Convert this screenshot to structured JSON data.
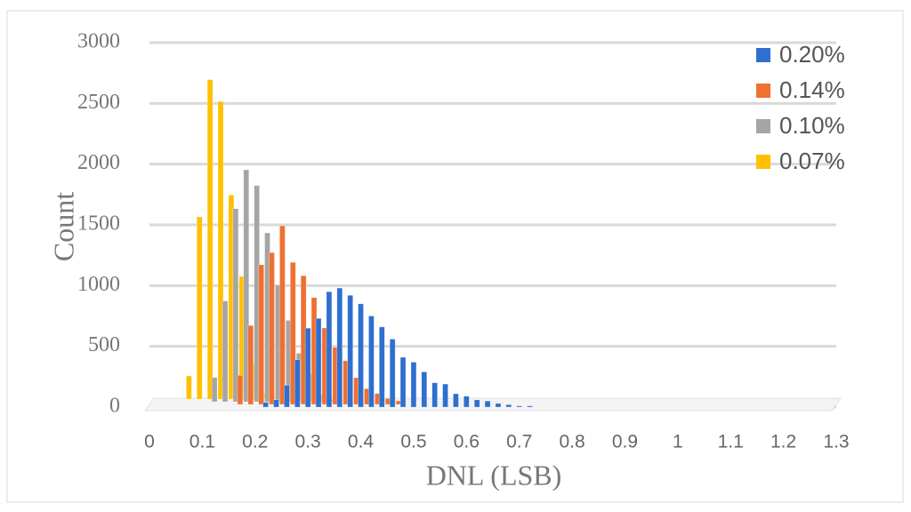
{
  "chart_data": {
    "type": "bar",
    "x_label": "DNL (LSB)",
    "y_label": "Count",
    "x": [
      0.1,
      0.12,
      0.14,
      0.16,
      0.18,
      0.2,
      0.22,
      0.24,
      0.26,
      0.28,
      0.3,
      0.32,
      0.34,
      0.36,
      0.38,
      0.4,
      0.42,
      0.44,
      0.46,
      0.48,
      0.5,
      0.52,
      0.54,
      0.56,
      0.58,
      0.6,
      0.62,
      0.64,
      0.66,
      0.68,
      0.7,
      0.72
    ],
    "series": [
      {
        "name": "0.20%",
        "color": "#2e6fcf",
        "values": [
          null,
          null,
          null,
          null,
          null,
          null,
          40,
          60,
          180,
          390,
          650,
          730,
          950,
          980,
          920,
          850,
          750,
          660,
          560,
          410,
          370,
          290,
          200,
          190,
          110,
          90,
          60,
          50,
          30,
          20,
          10,
          10
        ]
      },
      {
        "name": "0.14%",
        "color": "#f07030",
        "values": [
          null,
          null,
          null,
          null,
          240,
          650,
          1150,
          1250,
          1470,
          1170,
          1060,
          880,
          630,
          470,
          360,
          220,
          130,
          90,
          50,
          30,
          null,
          null,
          null,
          null,
          null,
          null,
          null,
          null,
          null,
          null,
          null,
          null
        ]
      },
      {
        "name": "0.10%",
        "color": "#a5a5a5",
        "values": [
          null,
          null,
          200,
          830,
          1590,
          1910,
          1780,
          1390,
          960,
          670,
          400,
          230,
          60,
          20,
          null,
          null,
          null,
          null,
          null,
          null,
          null,
          null,
          null,
          null,
          null,
          null,
          null,
          null,
          null,
          null,
          null,
          null
        ]
      },
      {
        "name": "0.07%",
        "color": "#ffc000",
        "values": [
          190,
          1500,
          2630,
          2450,
          1680,
          1010,
          300,
          50,
          null,
          null,
          null,
          null,
          null,
          null,
          null,
          null,
          null,
          null,
          null,
          null,
          null,
          null,
          null,
          null,
          null,
          null,
          null,
          null,
          null,
          null,
          null,
          null
        ]
      }
    ],
    "xlim": [
      0,
      1.3
    ],
    "xticks": [
      0,
      0.1,
      0.2,
      0.3,
      0.4,
      0.5,
      0.6,
      0.7,
      0.8,
      0.9,
      1,
      1.1,
      1.2,
      1.3
    ],
    "ylim": [
      0,
      3000
    ],
    "yticks": [
      0,
      500,
      1000,
      1500,
      2000,
      2500,
      3000
    ],
    "grid": true,
    "legend": "top-right"
  }
}
